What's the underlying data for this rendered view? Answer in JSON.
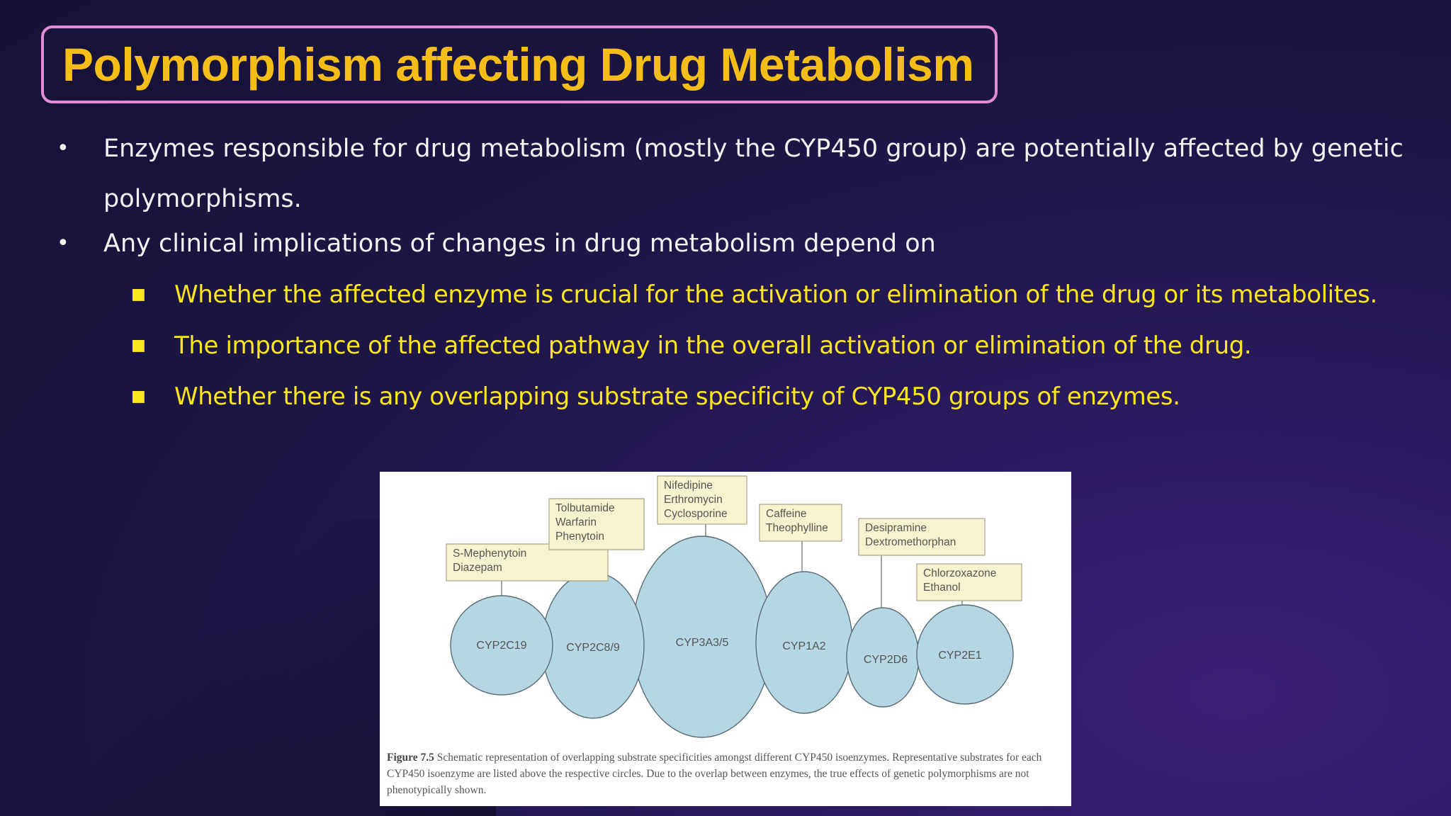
{
  "slide": {
    "title": "Polymorphism affecting Drug Metabolism",
    "bullets": [
      {
        "text": "Enzymes responsible for drug metabolism (mostly the CYP450 group) are potentially affected by genetic"
      },
      {
        "text": "polymorphisms."
      },
      {
        "text": "Any clinical implications of changes in drug metabolism depend on"
      }
    ],
    "sub_bullets": [
      "Whether the affected enzyme is crucial for the activation or elimination of the drug or its metabolites.",
      "The importance of the affected pathway in the overall activation or elimination of the drug.",
      "Whether there is any overlapping substrate specificity of CYP450 groups of enzymes."
    ]
  },
  "figure": {
    "enzymes": [
      "CYP2C19",
      "CYP2C8/9",
      "CYP3A3/5",
      "CYP1A2",
      "CYP2D6",
      "CYP2E1"
    ],
    "substrates": [
      [
        "S-Mephenytoin",
        "Diazepam"
      ],
      [
        "Tolbutamide",
        "Warfarin",
        "Phenytoin"
      ],
      [
        "Nifedipine",
        "Erthromycin",
        "Cyclosporine"
      ],
      [
        "Caffeine",
        "Theophylline"
      ],
      [
        "Desipramine",
        "Dextromethorphan"
      ],
      [
        "Chlorzoxazone",
        "Ethanol"
      ]
    ],
    "caption_label": "Figure 7.5",
    "caption_text": "Schematic representation of overlapping substrate specificities amongst different CYP450 isoenzymes. Representative substrates for each CYP450 isoenzyme are listed above the respective circles. Due to the overlap between enzymes, the true effects of genetic polymorphisms are not phenotypically shown.",
    "colors": {
      "circle_fill": "#b5d6e3",
      "circle_stroke": "#5a6d76",
      "label_fill": "#f8f3cf",
      "label_stroke": "#a8a488"
    }
  }
}
